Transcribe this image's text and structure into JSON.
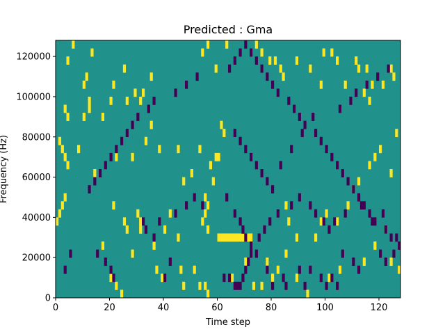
{
  "chart_data": {
    "type": "heatmap",
    "title": "Predicted : Gma",
    "xlabel": "Time step",
    "ylabel": "Frequency (Hz)",
    "xlim": [
      0,
      128
    ],
    "ylim": [
      0,
      128000
    ],
    "x_ticks": [
      "0",
      "20",
      "40",
      "60",
      "80",
      "100",
      "120"
    ],
    "y_ticks": [
      "0",
      "20000",
      "40000",
      "60000",
      "80000",
      "100000",
      "120000"
    ],
    "grid": false,
    "legend": "none",
    "colormap": "viridis",
    "colors": {
      "background": "#21918c",
      "high": "#fde725",
      "low": "#440154"
    },
    "value_levels": {
      "low": 0,
      "background": 0.5,
      "high": 1
    },
    "cell_height": 4000,
    "rows_from_top": 32,
    "cells_high": [
      [
        6,
        0
      ],
      [
        10,
        9
      ],
      [
        17,
        9
      ],
      [
        12,
        7
      ],
      [
        10,
        5
      ],
      [
        11,
        4
      ],
      [
        12,
        8
      ],
      [
        20,
        7
      ],
      [
        26,
        7
      ],
      [
        31,
        7
      ],
      [
        32,
        6
      ],
      [
        21,
        5
      ],
      [
        29,
        6
      ],
      [
        25,
        3
      ],
      [
        4,
        2
      ],
      [
        13,
        1
      ],
      [
        35,
        4
      ],
      [
        54,
        1
      ],
      [
        56,
        0
      ],
      [
        59,
        3
      ],
      [
        63,
        0
      ],
      [
        74,
        0
      ],
      [
        76,
        1
      ],
      [
        79,
        2
      ],
      [
        81,
        2
      ],
      [
        83,
        3
      ],
      [
        84,
        4
      ],
      [
        89,
        2
      ],
      [
        94,
        3
      ],
      [
        98,
        5
      ],
      [
        107,
        5
      ],
      [
        114,
        6
      ],
      [
        116,
        7
      ],
      [
        121,
        5
      ],
      [
        124,
        3
      ],
      [
        125,
        4
      ],
      [
        104,
        2
      ],
      [
        99,
        1
      ],
      [
        111,
        2
      ],
      [
        112,
        3
      ],
      [
        102,
        1
      ],
      [
        115,
        3
      ],
      [
        117,
        5
      ],
      [
        3,
        8
      ],
      [
        4,
        9
      ],
      [
        8,
        13
      ],
      [
        14,
        16
      ],
      [
        22,
        14
      ],
      [
        28,
        14
      ],
      [
        33,
        12
      ],
      [
        35,
        10
      ],
      [
        38,
        13
      ],
      [
        45,
        13
      ],
      [
        53,
        13
      ],
      [
        59,
        14
      ],
      [
        60,
        14
      ],
      [
        61,
        10
      ],
      [
        62,
        11
      ],
      [
        58,
        17
      ],
      [
        57,
        15
      ],
      [
        56,
        20
      ],
      [
        55,
        19
      ],
      [
        55,
        21
      ],
      [
        54,
        22
      ],
      [
        56,
        23
      ],
      [
        60,
        24
      ],
      [
        61,
        24
      ],
      [
        62,
        24
      ],
      [
        63,
        24
      ],
      [
        64,
        24
      ],
      [
        65,
        24
      ],
      [
        66,
        24
      ],
      [
        67,
        24
      ],
      [
        68,
        24
      ],
      [
        69,
        24
      ],
      [
        70,
        24
      ],
      [
        71,
        24
      ],
      [
        72,
        24
      ],
      [
        17,
        25
      ],
      [
        21,
        20
      ],
      [
        25,
        22
      ],
      [
        30,
        21
      ],
      [
        31,
        22
      ],
      [
        31,
        23
      ],
      [
        28,
        26
      ],
      [
        36,
        25
      ],
      [
        40,
        23
      ],
      [
        45,
        24
      ],
      [
        46,
        28
      ],
      [
        47,
        30
      ],
      [
        51,
        28
      ],
      [
        53,
        30
      ],
      [
        55,
        30
      ],
      [
        56,
        31
      ],
      [
        65,
        29
      ],
      [
        70,
        27
      ],
      [
        73,
        30
      ],
      [
        76,
        30
      ],
      [
        78,
        27
      ],
      [
        80,
        29
      ],
      [
        82,
        28
      ],
      [
        85,
        26
      ],
      [
        89,
        29
      ],
      [
        93,
        31
      ],
      [
        101,
        29
      ],
      [
        105,
        28
      ],
      [
        114,
        27
      ],
      [
        118,
        25
      ],
      [
        122,
        23
      ],
      [
        124,
        27
      ],
      [
        127,
        28
      ],
      [
        0,
        22
      ],
      [
        1,
        21
      ],
      [
        2,
        20
      ],
      [
        3,
        19
      ],
      [
        4,
        15
      ],
      [
        3,
        14
      ],
      [
        2,
        13
      ],
      [
        1,
        12
      ],
      [
        20,
        29
      ],
      [
        22,
        30
      ],
      [
        24,
        31
      ],
      [
        37,
        28
      ],
      [
        39,
        29
      ],
      [
        26,
        23
      ],
      [
        42,
        21
      ],
      [
        47,
        17
      ],
      [
        50,
        16
      ],
      [
        85,
        20
      ],
      [
        86,
        22
      ],
      [
        89,
        24
      ],
      [
        96,
        24
      ],
      [
        98,
        22
      ],
      [
        100,
        21
      ],
      [
        104,
        22
      ],
      [
        108,
        20
      ],
      [
        110,
        18
      ],
      [
        112,
        17
      ],
      [
        116,
        15
      ],
      [
        118,
        14
      ],
      [
        120,
        13
      ],
      [
        124,
        16
      ],
      [
        126,
        11
      ]
    ],
    "cells_low": [
      [
        3,
        28
      ],
      [
        5,
        26
      ],
      [
        15,
        26
      ],
      [
        18,
        27
      ],
      [
        20,
        28
      ],
      [
        21,
        29
      ],
      [
        40,
        29
      ],
      [
        42,
        27
      ],
      [
        62,
        29
      ],
      [
        64,
        29
      ],
      [
        66,
        30
      ],
      [
        67,
        30
      ],
      [
        68,
        30
      ],
      [
        69,
        29
      ],
      [
        70,
        28
      ],
      [
        71,
        27
      ],
      [
        72,
        26
      ],
      [
        74,
        26
      ],
      [
        78,
        28
      ],
      [
        80,
        30
      ],
      [
        84,
        29
      ],
      [
        85,
        30
      ],
      [
        90,
        28
      ],
      [
        92,
        30
      ],
      [
        94,
        28
      ],
      [
        98,
        29
      ],
      [
        100,
        30
      ],
      [
        102,
        29
      ],
      [
        104,
        30
      ],
      [
        106,
        26
      ],
      [
        110,
        27
      ],
      [
        112,
        28
      ],
      [
        120,
        26
      ],
      [
        122,
        27
      ],
      [
        125,
        26
      ],
      [
        32,
        22
      ],
      [
        33,
        23
      ],
      [
        36,
        24
      ],
      [
        38,
        22
      ],
      [
        44,
        21
      ],
      [
        48,
        20
      ],
      [
        51,
        19
      ],
      [
        54,
        20
      ],
      [
        63,
        19
      ],
      [
        66,
        21
      ],
      [
        68,
        22
      ],
      [
        69,
        23
      ],
      [
        70,
        24
      ],
      [
        72,
        25
      ],
      [
        75,
        24
      ],
      [
        77,
        23
      ],
      [
        79,
        22
      ],
      [
        82,
        21
      ],
      [
        87,
        20
      ],
      [
        90,
        19
      ],
      [
        94,
        20
      ],
      [
        96,
        21
      ],
      [
        99,
        22
      ],
      [
        101,
        23
      ],
      [
        103,
        22
      ],
      [
        107,
        21
      ],
      [
        113,
        20
      ],
      [
        117,
        22
      ],
      [
        121,
        21
      ],
      [
        124,
        24
      ],
      [
        127,
        25
      ],
      [
        12,
        18
      ],
      [
        14,
        17
      ],
      [
        16,
        16
      ],
      [
        18,
        15
      ],
      [
        20,
        14
      ],
      [
        22,
        13
      ],
      [
        24,
        12
      ],
      [
        26,
        11
      ],
      [
        28,
        10
      ],
      [
        30,
        9
      ],
      [
        34,
        8
      ],
      [
        36,
        7
      ],
      [
        44,
        6
      ],
      [
        48,
        5
      ],
      [
        52,
        4
      ],
      [
        64,
        3
      ],
      [
        66,
        2
      ],
      [
        68,
        1
      ],
      [
        70,
        0
      ],
      [
        72,
        1
      ],
      [
        74,
        2
      ],
      [
        76,
        3
      ],
      [
        78,
        4
      ],
      [
        80,
        5
      ],
      [
        82,
        6
      ],
      [
        86,
        7
      ],
      [
        88,
        8
      ],
      [
        90,
        9
      ],
      [
        92,
        10
      ],
      [
        96,
        11
      ],
      [
        98,
        12
      ],
      [
        100,
        13
      ],
      [
        102,
        14
      ],
      [
        104,
        15
      ],
      [
        106,
        16
      ],
      [
        108,
        17
      ],
      [
        110,
        18
      ],
      [
        112,
        19
      ],
      [
        114,
        20
      ],
      [
        116,
        21
      ],
      [
        118,
        22
      ],
      [
        122,
        23
      ],
      [
        126,
        24
      ],
      [
        66,
        11
      ],
      [
        68,
        12
      ],
      [
        70,
        13
      ],
      [
        72,
        14
      ],
      [
        74,
        15
      ],
      [
        76,
        16
      ],
      [
        78,
        17
      ],
      [
        80,
        18
      ],
      [
        83,
        15
      ],
      [
        87,
        13
      ],
      [
        91,
        11
      ],
      [
        95,
        9
      ],
      [
        105,
        8
      ],
      [
        109,
        7
      ],
      [
        111,
        6
      ],
      [
        115,
        5
      ],
      [
        119,
        4
      ],
      [
        123,
        3
      ]
    ]
  }
}
